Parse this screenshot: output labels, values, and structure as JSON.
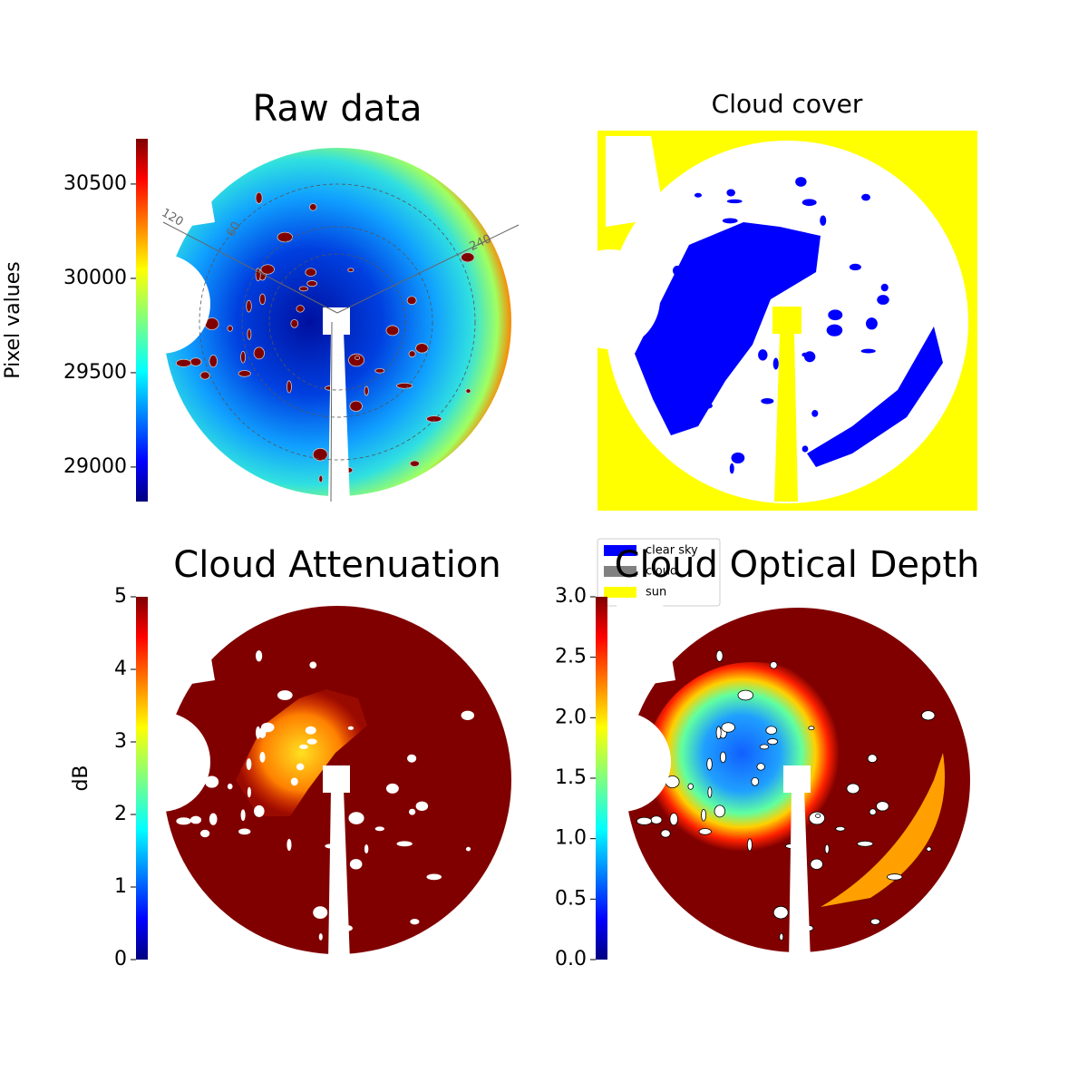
{
  "chart_data": [
    {
      "type": "image",
      "title": "Raw data",
      "colorbar_label": "Pixel values",
      "colormap": "jet",
      "clim": [
        28817,
        30740
      ],
      "cticks": [
        29000,
        29500,
        30000,
        30500
      ],
      "annotations": [
        "120",
        "60",
        "240"
      ]
    },
    {
      "type": "image",
      "title": "Cloud cover",
      "series": [
        {
          "name": "clear sky",
          "color": "#0000ff"
        },
        {
          "name": "cloud",
          "color": "#808080"
        },
        {
          "name": "sun",
          "color": "#ffff00"
        }
      ]
    },
    {
      "type": "image",
      "title": "Cloud Attenuation",
      "colorbar_label": "dB",
      "colormap": "jet",
      "clim": [
        0,
        5
      ],
      "cticks": [
        0,
        1,
        2,
        3,
        4,
        5
      ]
    },
    {
      "type": "image",
      "title": "Cloud Optical Depth",
      "colormap": "jet",
      "clim": [
        0,
        3
      ],
      "cticks": [
        {
          "value": 0,
          "label": "0.0"
        },
        0.5,
        {
          "value": 1,
          "label": "1.0"
        },
        1.5,
        {
          "value": 2,
          "label": "2.0"
        },
        2.5,
        {
          "value": 3,
          "label": "3.0"
        }
      ]
    }
  ]
}
